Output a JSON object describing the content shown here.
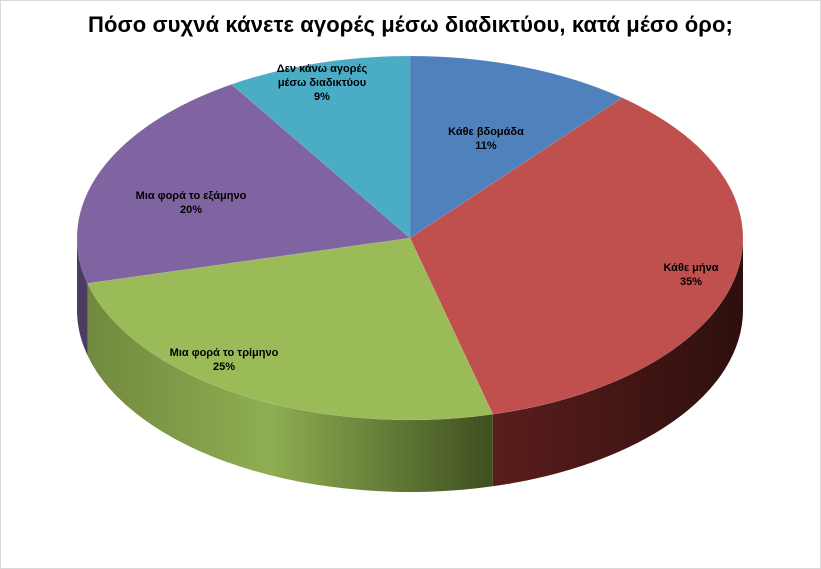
{
  "chart_data": {
    "type": "pie",
    "three_d": true,
    "title": "Πόσο συχνά κάνετε αγορές μέσω διαδικτύου, κατά μέσο όρο;",
    "slices": [
      {
        "label": "Κάθε βδομάδα",
        "percent_label": "11%",
        "value": 11,
        "color": "#4f81bd"
      },
      {
        "label": "Κάθε μήνα",
        "percent_label": "35%",
        "value": 35,
        "color": "#c0504d"
      },
      {
        "label": "Μια φορά το τρίμηνο",
        "percent_label": "25%",
        "value": 25,
        "color": "#9bbb59"
      },
      {
        "label": "Μια φορά το εξάμηνο",
        "percent_label": "20%",
        "value": 20,
        "color": "#8064a2"
      },
      {
        "label": "Δεν κάνω αγορές μέσω διαδικτύου",
        "percent_label": "9%",
        "value": 9,
        "color": "#4bacc6"
      }
    ],
    "legend": "none"
  }
}
